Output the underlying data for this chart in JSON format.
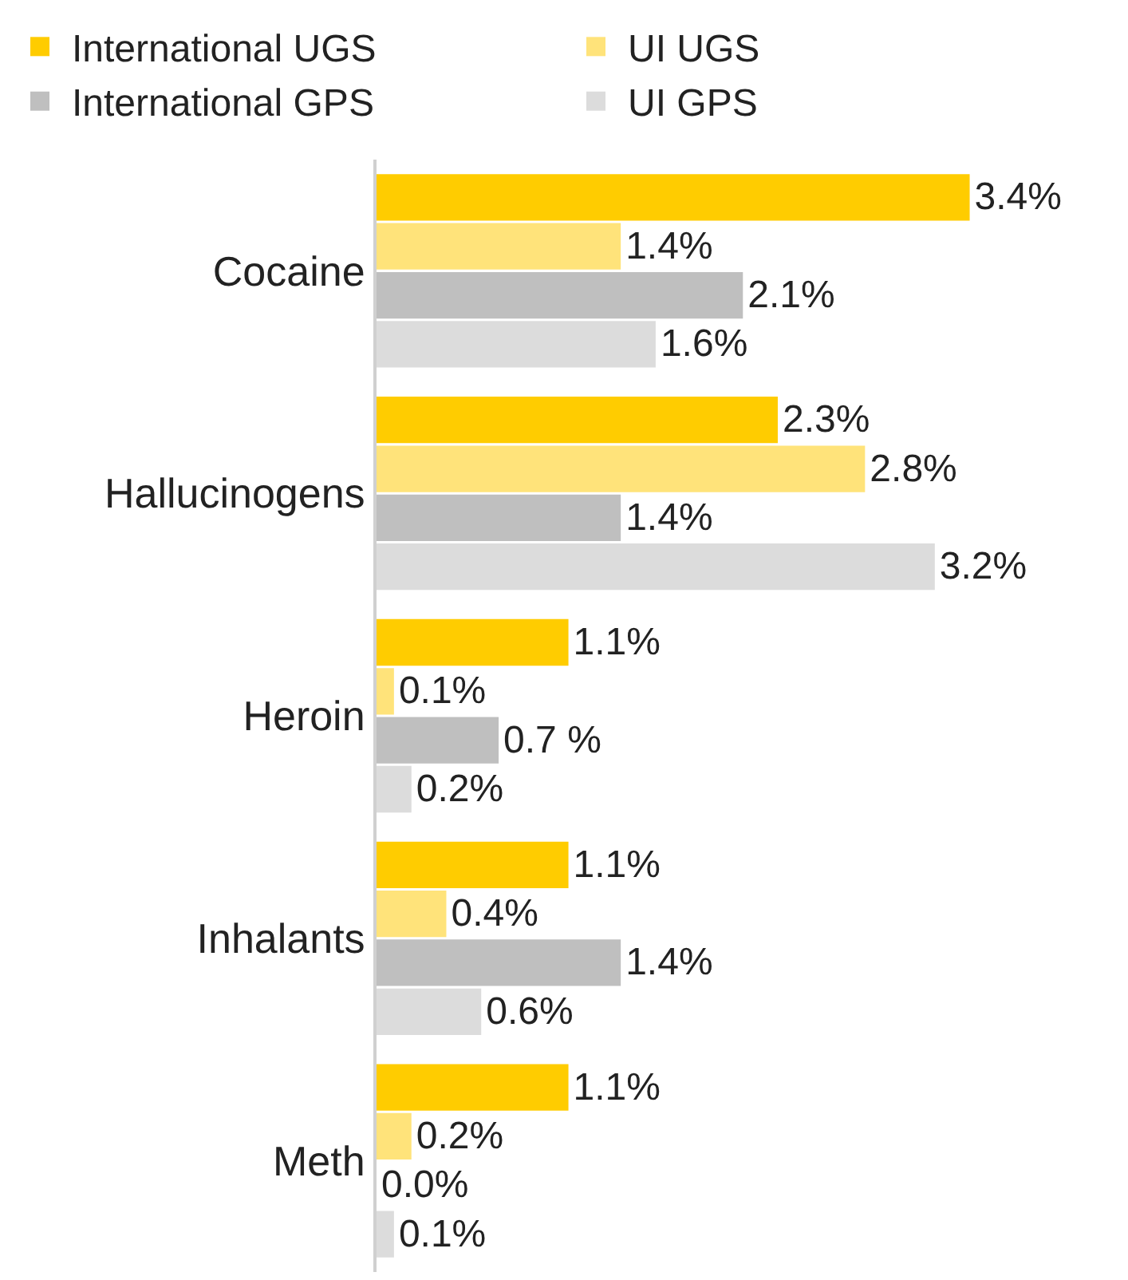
{
  "chart_data": {
    "type": "bar",
    "orientation": "horizontal",
    "categories": [
      "Cocaine",
      "Hallucinogens",
      "Heroin",
      "Inhalants",
      "Meth"
    ],
    "series": [
      {
        "name": "International UGS",
        "color": "#ffcc00",
        "values": [
          3.4,
          2.3,
          1.1,
          1.1,
          1.1
        ],
        "value_labels": [
          "3.4%",
          "2.3%",
          "1.1%",
          "1.1%",
          "1.1%"
        ]
      },
      {
        "name": "UI UGS",
        "color": "#ffe37a",
        "values": [
          1.4,
          2.8,
          0.1,
          0.4,
          0.2
        ],
        "value_labels": [
          "1.4%",
          "2.8%",
          "0.1%",
          "0.4%",
          "0.2%"
        ]
      },
      {
        "name": "International GPS",
        "color": "#bfbfbf",
        "values": [
          2.1,
          1.4,
          0.7,
          1.4,
          0.0
        ],
        "value_labels": [
          "2.1%",
          "1.4%",
          "0.7 %",
          "1.4%",
          "0.0%"
        ]
      },
      {
        "name": "UI GPS",
        "color": "#dcdcdc",
        "values": [
          1.6,
          3.2,
          0.2,
          0.6,
          0.1
        ],
        "value_labels": [
          "1.6%",
          "3.2%",
          "0.2%",
          "0.6%",
          "0.1%"
        ]
      }
    ],
    "legend": "top",
    "grid": false,
    "tick_labels": "y"
  }
}
